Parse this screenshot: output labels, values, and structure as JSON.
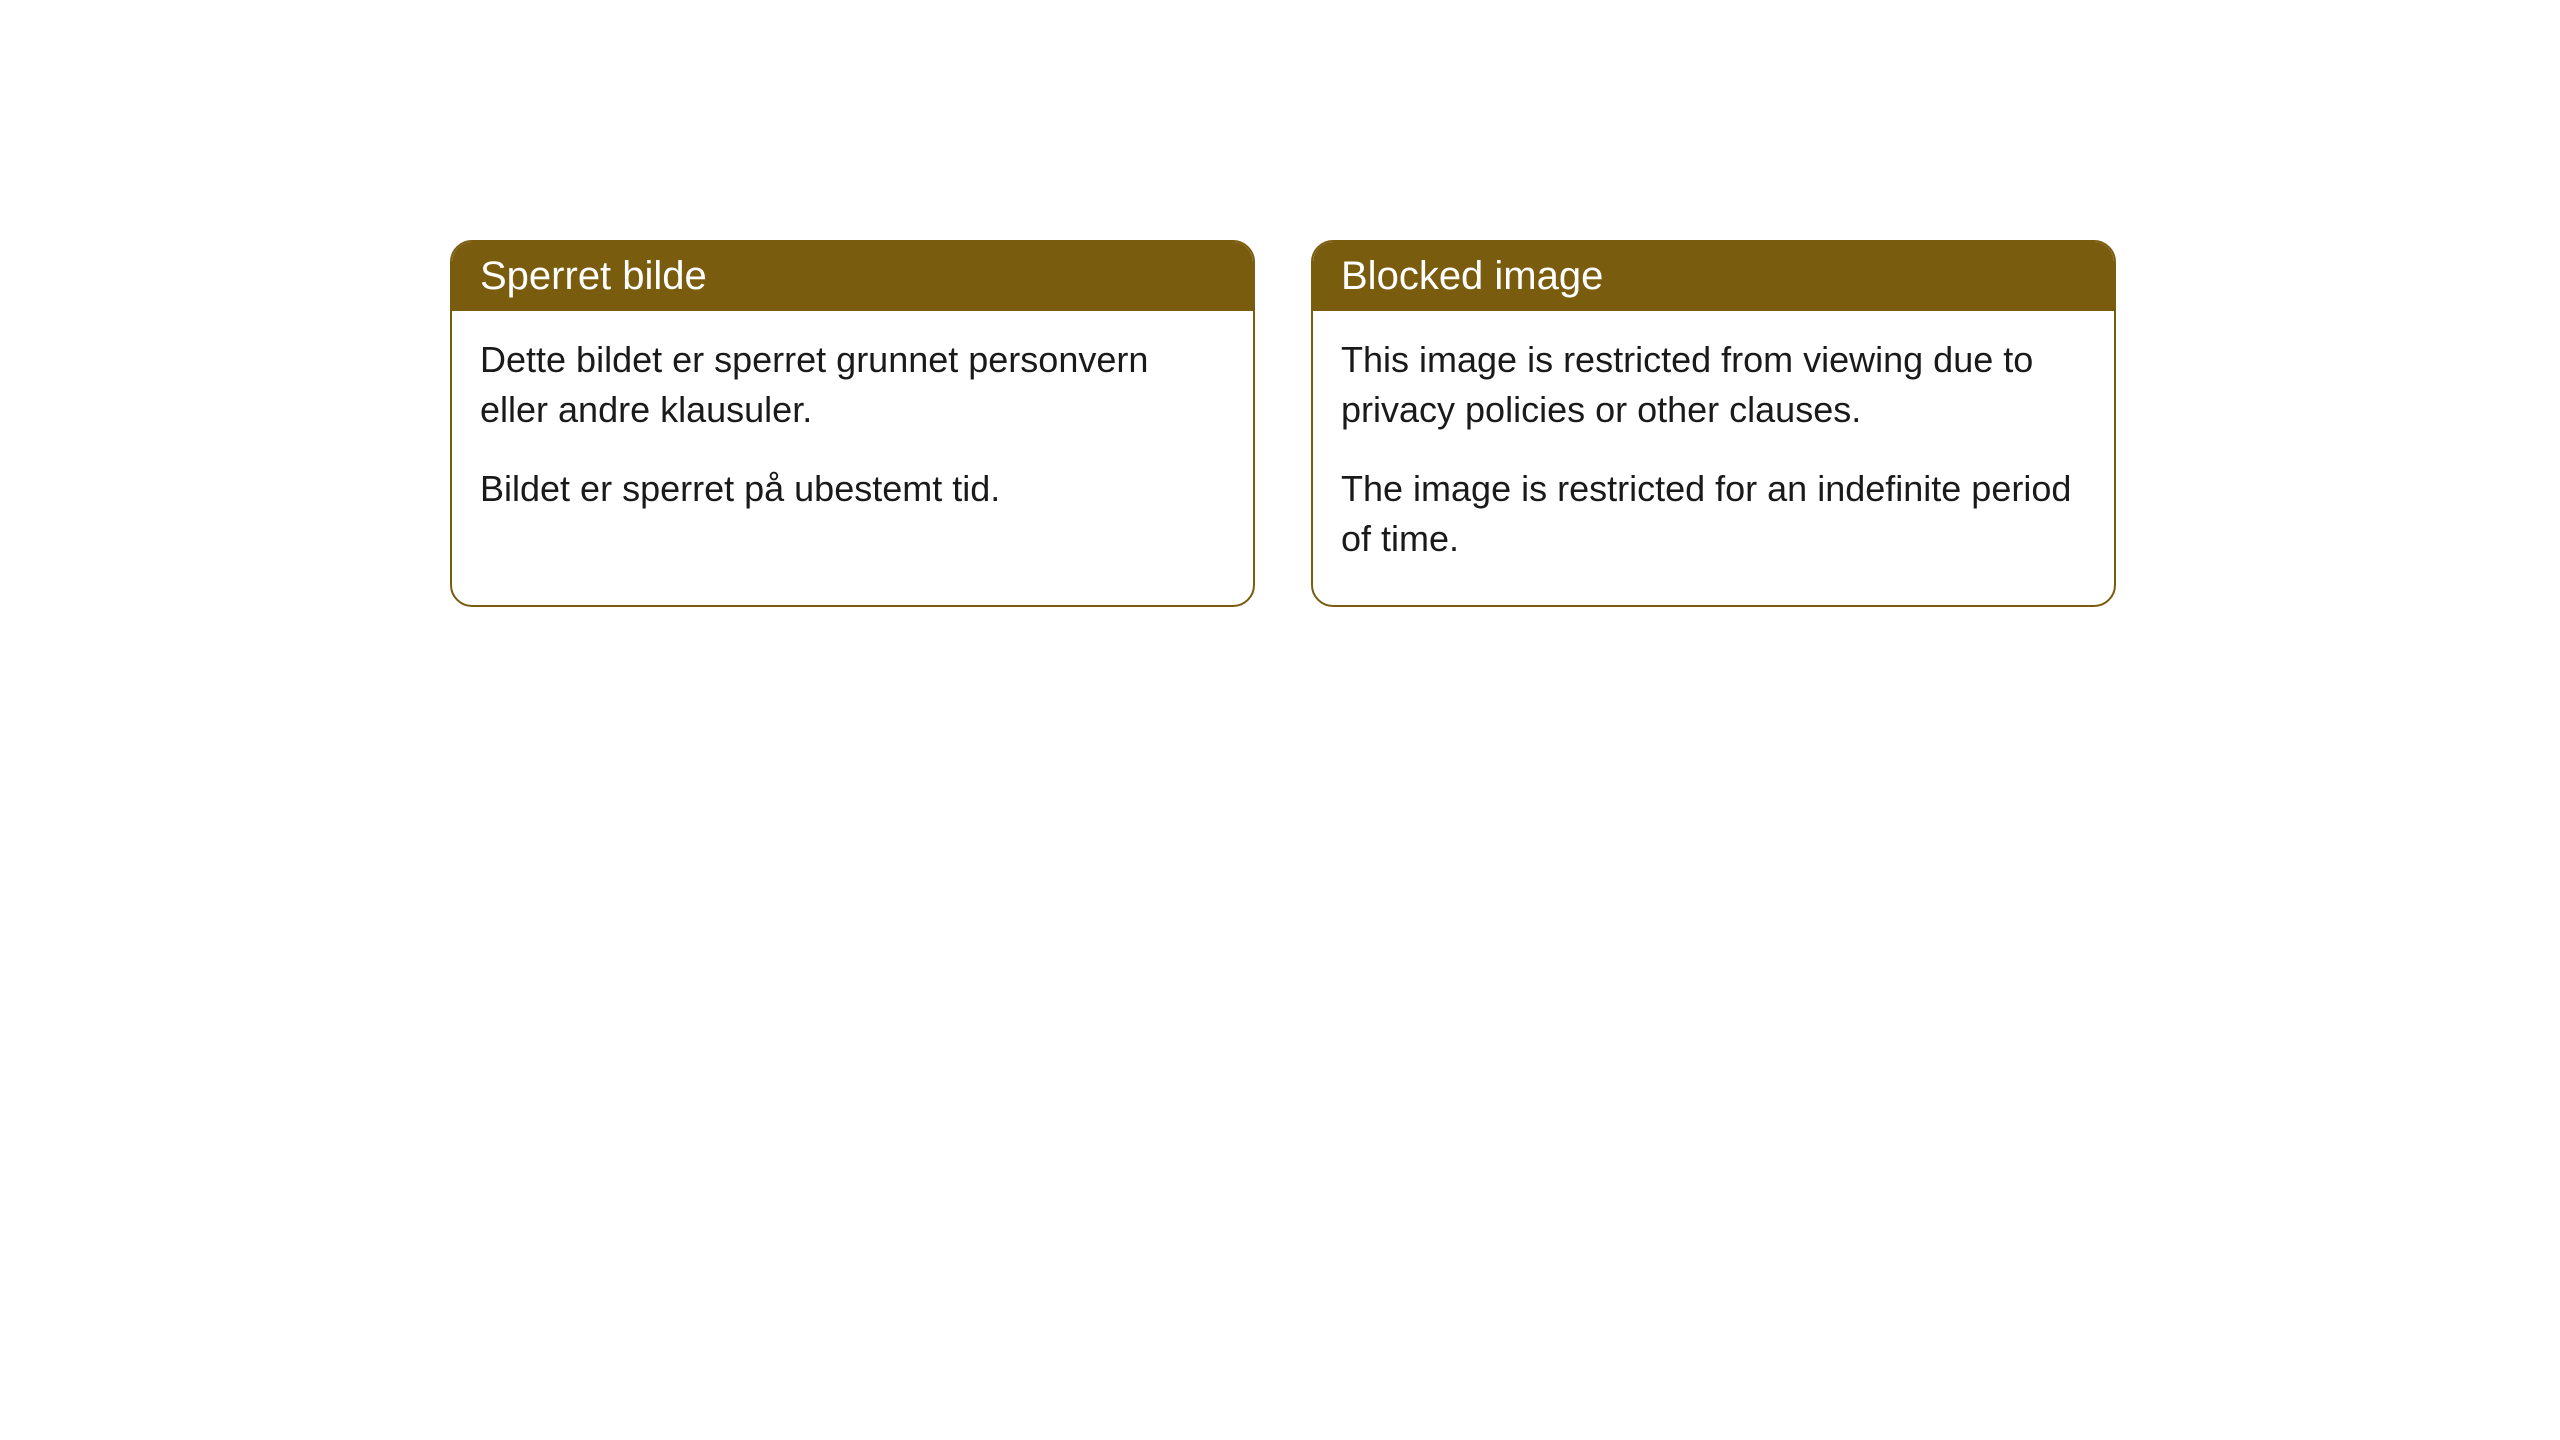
{
  "cards": [
    {
      "title": "Sperret bilde",
      "paragraph1": "Dette bildet er sperret grunnet personvern eller andre klausuler.",
      "paragraph2": "Bildet er sperret på ubestemt tid."
    },
    {
      "title": "Blocked image",
      "paragraph1": "This image is restricted from viewing due to privacy policies or other clauses.",
      "paragraph2": "The image is restricted for an indefinite period of time."
    }
  ],
  "style": {
    "header_bg_color": "#7a5c0f",
    "header_text_color": "#ffffff",
    "border_color": "#7a5c0f",
    "body_bg_color": "#ffffff",
    "body_text_color": "#1a1a1a",
    "border_radius": 22,
    "header_fontsize": 40,
    "body_fontsize": 36
  }
}
